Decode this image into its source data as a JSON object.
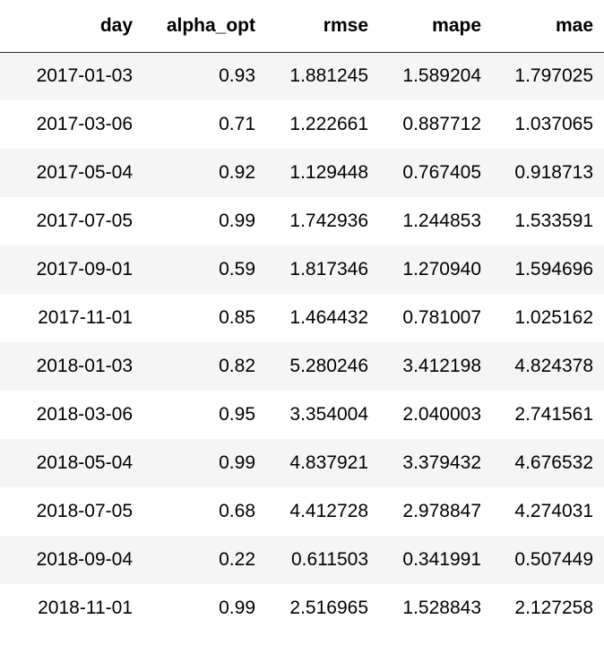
{
  "table": {
    "columns": [
      "day",
      "alpha_opt",
      "rmse",
      "mape",
      "mae"
    ],
    "rows": [
      [
        "2017-01-03",
        "0.93",
        "1.881245",
        "1.589204",
        "1.797025"
      ],
      [
        "2017-03-06",
        "0.71",
        "1.222661",
        "0.887712",
        "1.037065"
      ],
      [
        "2017-05-04",
        "0.92",
        "1.129448",
        "0.767405",
        "0.918713"
      ],
      [
        "2017-07-05",
        "0.99",
        "1.742936",
        "1.244853",
        "1.533591"
      ],
      [
        "2017-09-01",
        "0.59",
        "1.817346",
        "1.270940",
        "1.594696"
      ],
      [
        "2017-11-01",
        "0.85",
        "1.464432",
        "0.781007",
        "1.025162"
      ],
      [
        "2018-01-03",
        "0.82",
        "5.280246",
        "3.412198",
        "4.824378"
      ],
      [
        "2018-03-06",
        "0.95",
        "3.354004",
        "2.040003",
        "2.741561"
      ],
      [
        "2018-05-04",
        "0.99",
        "4.837921",
        "3.379432",
        "4.676532"
      ],
      [
        "2018-07-05",
        "0.68",
        "4.412728",
        "2.978847",
        "4.274031"
      ],
      [
        "2018-09-04",
        "0.22",
        "0.611503",
        "0.341991",
        "0.507449"
      ],
      [
        "2018-11-01",
        "0.99",
        "2.516965",
        "1.528843",
        "2.127258"
      ]
    ]
  },
  "colors": {
    "stripe": "#f5f5f5",
    "header_rule": "#333333"
  }
}
